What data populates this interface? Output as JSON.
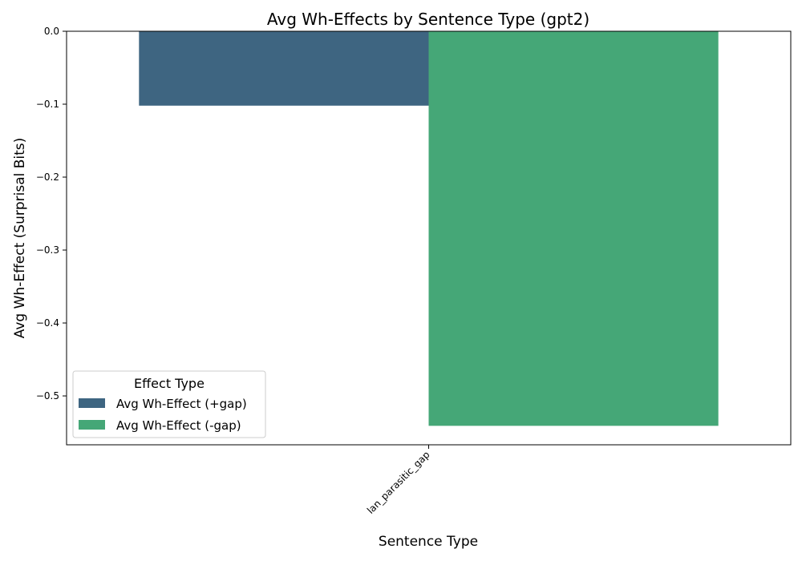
{
  "chart_data": {
    "type": "bar",
    "title": "Avg Wh-Effects by Sentence Type (gpt2)",
    "xlabel": "Sentence Type",
    "ylabel": "Avg Wh-Effect (Surprisal Bits)",
    "categories": [
      "lan_parasitic_gap"
    ],
    "series": [
      {
        "name": "Avg Wh-Effect (+gap)",
        "values": [
          -0.102
        ],
        "color": "#3e6581"
      },
      {
        "name": "Avg Wh-Effect (-gap)",
        "values": [
          -0.541
        ],
        "color": "#45a777"
      }
    ],
    "ylim": [
      -0.567,
      0.0
    ],
    "yticks": [
      0.0,
      -0.1,
      -0.2,
      -0.3,
      -0.4,
      -0.5
    ],
    "ytick_labels": [
      "0.0",
      "−0.1",
      "−0.2",
      "−0.3",
      "−0.4",
      "−0.5"
    ],
    "grid": false,
    "legend": {
      "title": "Effect Type",
      "placement": "lower-left"
    }
  }
}
